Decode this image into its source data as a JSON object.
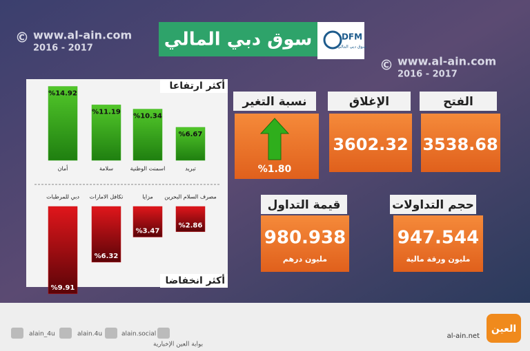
{
  "header": {
    "title": "سوق دبي المالي",
    "logo": "DFM",
    "logo_sub": "سوق دبي المالي"
  },
  "watermark": {
    "url": "www.al-ain.com",
    "years": "2016 - 2017"
  },
  "cards": {
    "open": {
      "label": "الفتح",
      "value": 3538.68
    },
    "close": {
      "label": "الإغلاق",
      "value": 3602.32
    },
    "change": {
      "label": "نسبة التغير",
      "value": 1.8,
      "value_label": "%1.80"
    },
    "volume": {
      "label": "حجم التداولات",
      "value": 947.544,
      "unit": "مليون ورقة مالية"
    },
    "traded_value": {
      "label": "قيمة التداول",
      "value": 980.938,
      "unit": "مليون درهم"
    }
  },
  "chart_data": [
    {
      "type": "bar",
      "title": "أكثر ارتفاعا",
      "categories": [
        "أمان",
        "سلامة",
        "اسمنت الوطنية",
        "تبريد"
      ],
      "values": [
        14.92,
        11.19,
        10.34,
        6.67
      ],
      "value_labels": [
        "%14.92",
        "%11.19",
        "%10.34",
        "%6.67"
      ],
      "color": "#3aae1c"
    },
    {
      "type": "bar",
      "title": "أكثر انخفاضا",
      "categories": [
        "دبي للمرطبات",
        "تكافل الامارات",
        "مزايا",
        "مصرف السلام البحرين"
      ],
      "values": [
        9.91,
        6.32,
        3.47,
        2.86
      ],
      "value_labels": [
        "%9.91",
        "%6.32",
        "%3.47",
        "%2.86"
      ],
      "color": "#c40d12"
    }
  ],
  "footer": {
    "twitter": "alain_4u",
    "instagram": "alain.4u",
    "facebook": "alain.social",
    "youtube": "بوابة العين الإخبارية",
    "site": "al-ain.net",
    "brand": "العين"
  }
}
